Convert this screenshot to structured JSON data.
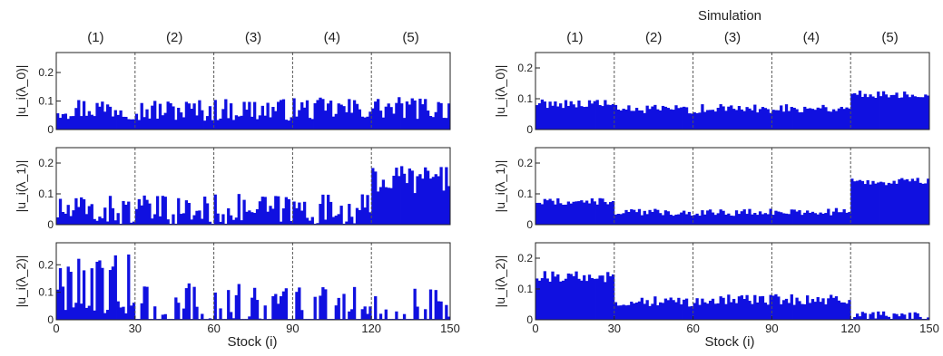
{
  "chart_data": [
    {
      "type": "bar",
      "panel": "left-top",
      "ylabel": "|u_i(λ_0)|",
      "xlim": [
        0,
        150
      ],
      "ylim": [
        0,
        0.27
      ],
      "yticks": [
        "0",
        "0.1",
        "0.2"
      ],
      "xticks": [],
      "xlabel": "",
      "segments": [
        "(1)",
        "(2)",
        "(3)",
        "(4)",
        "(5)"
      ],
      "boundaries": [
        30,
        60,
        90,
        120
      ],
      "segment_levels": [
        0.075,
        0.068,
        0.07,
        0.072,
        0.075
      ],
      "noise": 0.04
    },
    {
      "type": "bar",
      "panel": "left-middle",
      "ylabel": "|u_i(λ_1)|",
      "xlim": [
        0,
        150
      ],
      "ylim": [
        0,
        0.25
      ],
      "yticks": [
        "0",
        "0.1",
        "0.2"
      ],
      "xticks": [],
      "xlabel": "",
      "boundaries": [
        30,
        60,
        90,
        120
      ],
      "segment_levels": [
        0.045,
        0.045,
        0.05,
        0.05,
        0.15
      ],
      "noise": 0.05
    },
    {
      "type": "bar",
      "panel": "left-bottom",
      "ylabel": "|u_i(λ_2)|",
      "xlim": [
        0,
        150
      ],
      "ylim": [
        0,
        0.28
      ],
      "yticks": [
        "0",
        "0.1",
        "0.2"
      ],
      "xticks": [
        "0",
        "30",
        "60",
        "90",
        "120",
        "150"
      ],
      "xlabel": "Stock (i)",
      "boundaries": [
        30,
        60,
        90,
        120
      ],
      "segment_levels": [
        0.15,
        0.035,
        0.02,
        0.02,
        0.02
      ],
      "noise": 0.1
    },
    {
      "type": "bar",
      "panel": "right-top",
      "title": "Simulation",
      "ylabel": "|u_i(λ_0)|",
      "xlim": [
        0,
        150
      ],
      "ylim": [
        0,
        0.25
      ],
      "yticks": [
        "0",
        "0.1",
        "0.2"
      ],
      "xticks": [],
      "xlabel": "",
      "segments": [
        "(1)",
        "(2)",
        "(3)",
        "(4)",
        "(5)"
      ],
      "boundaries": [
        30,
        60,
        90,
        120
      ],
      "segment_levels": [
        0.085,
        0.065,
        0.068,
        0.07,
        0.115
      ],
      "noise": 0.015
    },
    {
      "type": "bar",
      "panel": "right-middle",
      "ylabel": "|u_i(λ_1)|",
      "xlim": [
        0,
        150
      ],
      "ylim": [
        0,
        0.25
      ],
      "yticks": [
        "0",
        "0.1",
        "0.2"
      ],
      "xticks": [],
      "xlabel": "",
      "boundaries": [
        30,
        60,
        90,
        120
      ],
      "segment_levels": [
        0.075,
        0.04,
        0.04,
        0.042,
        0.14
      ],
      "noise": 0.012
    },
    {
      "type": "bar",
      "panel": "right-bottom",
      "ylabel": "|u_i(λ_2)|",
      "xlim": [
        0,
        150
      ],
      "ylim": [
        0,
        0.25
      ],
      "yticks": [
        "0",
        "0.1",
        "0.2"
      ],
      "xticks": [
        "0",
        "30",
        "60",
        "90",
        "120",
        "150"
      ],
      "xlabel": "Stock (i)",
      "boundaries": [
        30,
        60,
        90,
        120
      ],
      "segment_levels": [
        0.14,
        0.06,
        0.065,
        0.065,
        0.01
      ],
      "noise": 0.018
    }
  ],
  "colors": {
    "bar": "#1010e0",
    "axis": "#222222",
    "divider": "#555555"
  }
}
